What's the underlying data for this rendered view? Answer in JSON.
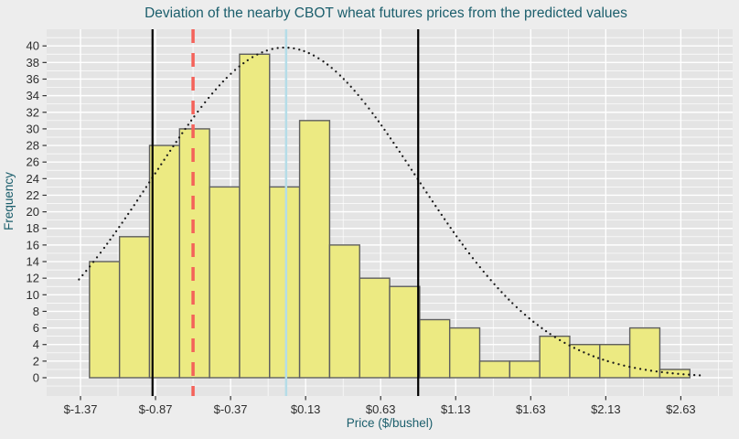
{
  "title": "Deviation of the nearby CBOT wheat futures prices from the predicted values",
  "colors": {
    "background": "#EDEDED",
    "panel": "#E4E4E4",
    "grid": "#FFFFFF",
    "bar_fill": "#ECEA82",
    "bar_border": "#5E5E5E",
    "title_text": "#1B5E6C",
    "axis_title_text": "#1B5E6C",
    "tick_label_text": "#2E2E2E",
    "tick_mark": "#333333",
    "ref_black": "#000000",
    "ref_red": "#F4625A",
    "ref_blue": "#B5DDE8",
    "curve_dot": "#1A1A1A"
  },
  "chart_data": {
    "type": "bar",
    "variant": "histogram",
    "title": "Deviation of the nearby CBOT wheat futures prices from the predicted values",
    "xlabel": "Price ($/bushel)",
    "ylabel": "Frequency",
    "bin_width": 0.2,
    "bin_edges": [
      -1.31,
      -1.11,
      -0.91,
      -0.71,
      -0.51,
      -0.31,
      -0.11,
      0.09,
      0.29,
      0.49,
      0.69,
      0.89,
      1.09,
      1.29,
      1.49,
      1.69,
      1.89,
      2.09,
      2.29,
      2.49,
      2.69
    ],
    "counts": [
      14,
      17,
      28,
      30,
      23,
      39,
      23,
      31,
      16,
      12,
      11,
      7,
      6,
      2,
      2,
      5,
      4,
      4,
      6,
      1
    ],
    "x_tick_labels": [
      "$-1.37",
      "$-0.87",
      "$-0.37",
      "$0.13",
      "$0.63",
      "$1.13",
      "$1.63",
      "$2.13",
      "$2.63"
    ],
    "x_tick_values": [
      -1.37,
      -0.87,
      -0.37,
      0.13,
      0.63,
      1.13,
      1.63,
      2.13,
      2.63
    ],
    "y_tick_values": [
      0,
      2,
      4,
      6,
      8,
      10,
      12,
      14,
      16,
      18,
      20,
      22,
      24,
      26,
      28,
      30,
      32,
      34,
      36,
      38,
      40
    ],
    "ylim": [
      0,
      40
    ],
    "xlim": [
      -1.59,
      2.98
    ],
    "grid": "on",
    "legend": "none",
    "reference_lines": [
      {
        "name": "lower-black-line",
        "value": -0.89,
        "style": "solid",
        "color_key": "ref_black",
        "width": 2.2
      },
      {
        "name": "red-dashed-line",
        "value": -0.62,
        "style": "dashed",
        "color_key": "ref_red",
        "width": 3.5,
        "dash": "15,11"
      },
      {
        "name": "lightblue-zero-line",
        "value": 0.0,
        "style": "solid",
        "color_key": "ref_blue",
        "width": 2.5
      },
      {
        "name": "upper-black-line",
        "value": 0.88,
        "style": "solid",
        "color_key": "ref_black",
        "width": 2.2
      }
    ],
    "normal_curve": {
      "mean": -0.01,
      "sd": 0.88,
      "peak": 39.8,
      "x_start": -1.38,
      "x_end": 2.76,
      "style": "dotted"
    }
  }
}
